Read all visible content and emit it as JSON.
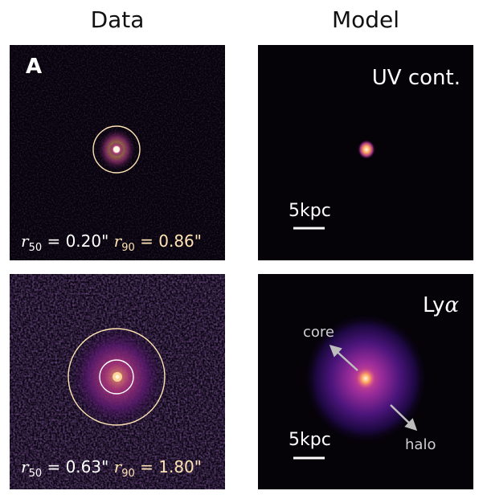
{
  "columns": {
    "left_title": "Data",
    "right_title": "Model"
  },
  "panels": {
    "data_top": {
      "tag": "A",
      "r50_sym": "r",
      "r50_sub": "50",
      "r50_val": " = 0.20\"",
      "r90_sym": "r",
      "r90_sub": "90",
      "r90_val": " = 0.86\""
    },
    "data_bottom": {
      "r50_sym": "r",
      "r50_sub": "50",
      "r50_val": " = 0.63\"",
      "r90_sym": "r",
      "r90_sub": "90",
      "r90_val": " = 1.80\""
    },
    "model_top": {
      "label": "UV cont.",
      "scale_label": "5kpc"
    },
    "model_bottom": {
      "label_main": "Ly",
      "label_greek": "α",
      "scale_label": "5kpc",
      "core_label": "core",
      "halo_label": "halo"
    }
  },
  "colors": {
    "circle_r90": "#fde3b4",
    "circle_r50": "#ffffff",
    "arrow": "#bdbdbd",
    "background": "#050208"
  }
}
